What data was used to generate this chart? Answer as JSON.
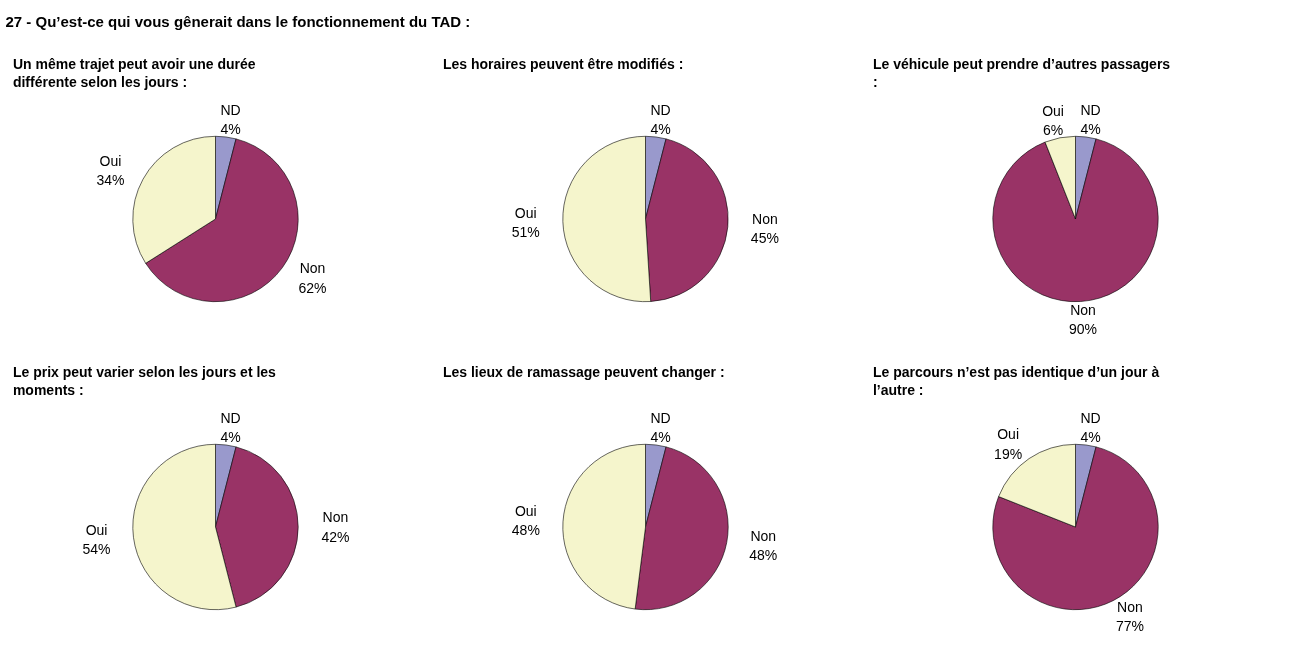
{
  "chart_data": [
    {
      "type": "other",
      "title": "27 - Qu’est-ce qui vous gênerait  dans le fonctionnement du TAD :"
    },
    {
      "type": "pie",
      "title": "Un même trajet peut avoir une durée différente selon les jours :",
      "categories": [
        "ND",
        "Non",
        "Oui"
      ],
      "values": [
        4,
        62,
        34
      ],
      "value_labels": [
        "4%",
        "62%",
        "34%"
      ],
      "colors": [
        "#9999cc",
        "#993366",
        "#f5f5cc"
      ]
    },
    {
      "type": "pie",
      "title": "Les horaires peuvent être modifiés :",
      "categories": [
        "ND",
        "Non",
        "Oui"
      ],
      "values": [
        4,
        45,
        51
      ],
      "value_labels": [
        "4%",
        "45%",
        "51%"
      ],
      "colors": [
        "#9999cc",
        "#993366",
        "#f5f5cc"
      ]
    },
    {
      "type": "pie",
      "title": "Le véhicule peut prendre d’autres passagers :",
      "categories": [
        "ND",
        "Non",
        "Oui"
      ],
      "values": [
        4,
        90,
        6
      ],
      "value_labels": [
        "4%",
        "90%",
        "6%"
      ],
      "colors": [
        "#9999cc",
        "#993366",
        "#f5f5cc"
      ]
    },
    {
      "type": "pie",
      "title": "Le prix peut varier selon les jours et les moments :",
      "categories": [
        "ND",
        "Non",
        "Oui"
      ],
      "values": [
        4,
        42,
        54
      ],
      "value_labels": [
        "4%",
        "42%",
        "54%"
      ],
      "colors": [
        "#9999cc",
        "#993366",
        "#f5f5cc"
      ]
    },
    {
      "type": "pie",
      "title": "Les lieux de ramassage peuvent changer :",
      "categories": [
        "ND",
        "Non",
        "Oui"
      ],
      "values": [
        4,
        48,
        48
      ],
      "value_labels": [
        "4%",
        "48%",
        "48%"
      ],
      "colors": [
        "#9999cc",
        "#993366",
        "#f5f5cc"
      ]
    },
    {
      "type": "pie",
      "title": "Le parcours n’est pas identique d’un jour à l’autre :",
      "categories": [
        "ND",
        "Non",
        "Oui"
      ],
      "values": [
        4,
        77,
        19
      ],
      "value_labels": [
        "4%",
        "77%",
        "19%"
      ],
      "colors": [
        "#9999cc",
        "#993366",
        "#f5f5cc"
      ]
    }
  ]
}
